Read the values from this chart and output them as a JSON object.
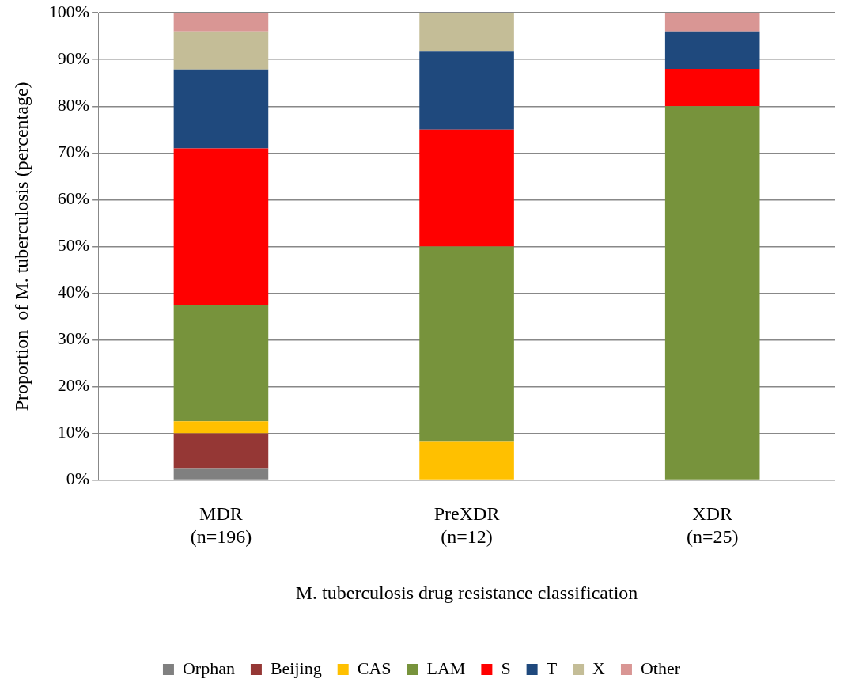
{
  "chart_data": {
    "type": "bar",
    "stacked": true,
    "xlabel": "M. tuberculosis drug resistance classification",
    "ylabel": "Proportion  of M. tuberculosis (percentage)",
    "categories": [
      "MDR\n(n=196)",
      "PreXDR\n(n=12)",
      "XDR\n(n=25)"
    ],
    "series": [
      {
        "name": "Orphan",
        "color": "#808080",
        "values": [
          2.4,
          null,
          null
        ]
      },
      {
        "name": "Beijing",
        "color": "#953735",
        "values": [
          7.6,
          null,
          null
        ]
      },
      {
        "name": "CAS",
        "color": "#ffc000",
        "values": [
          2.6,
          8.3,
          null
        ]
      },
      {
        "name": "LAM",
        "color": "#77933c",
        "values": [
          24.9,
          41.7,
          80
        ]
      },
      {
        "name": "S",
        "color": "#ff0000",
        "values": [
          33.5,
          25,
          8
        ]
      },
      {
        "name": "T",
        "color": "#1f497d",
        "values": [
          16.9,
          16.7,
          8
        ]
      },
      {
        "name": "X",
        "color": "#c4bd97",
        "values": [
          8.1,
          8.3,
          null
        ]
      },
      {
        "name": "Other",
        "color": "#d99694",
        "values": [
          4,
          null,
          4
        ]
      }
    ],
    "ylim": [
      0,
      100
    ],
    "yticks": [
      {
        "value": 0,
        "label": "0%"
      },
      {
        "value": 10,
        "label": "10%"
      },
      {
        "value": 20,
        "label": "20%"
      },
      {
        "value": 30,
        "label": "30%"
      },
      {
        "value": 40,
        "label": "40%"
      },
      {
        "value": 50,
        "label": "50%"
      },
      {
        "value": 60,
        "label": "60%"
      },
      {
        "value": 70,
        "label": "70%"
      },
      {
        "value": 80,
        "label": "80%"
      },
      {
        "value": 90,
        "label": "90%"
      },
      {
        "value": 100,
        "label": "100%"
      }
    ],
    "grid": "y",
    "legend": "bottom"
  }
}
